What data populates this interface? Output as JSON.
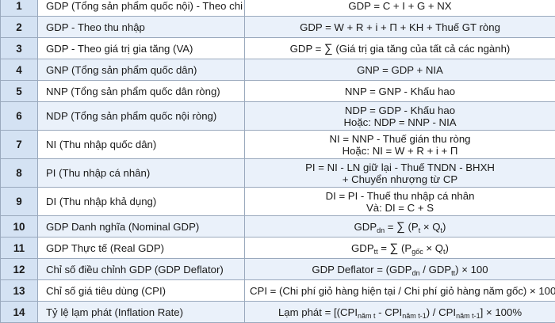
{
  "rows": [
    {
      "num": "1",
      "name": "GDP (Tổng sản phẩm quốc nội) - Theo chi tiêu",
      "lines": [
        [
          {
            "t": "GDP = C + I + G + NX"
          }
        ]
      ]
    },
    {
      "num": "2",
      "name": "GDP - Theo thu nhập",
      "lines": [
        [
          {
            "t": "GDP = W + R + i + Π + KH + Thuế GT ròng"
          }
        ]
      ]
    },
    {
      "num": "3",
      "name": "GDP - Theo giá trị gia tăng (VA)",
      "lines": [
        [
          {
            "t": "GDP = "
          },
          {
            "t": "∑",
            "c": "sigma"
          },
          {
            "t": " (Giá trị gia tăng của tất cả các ngành)"
          }
        ]
      ]
    },
    {
      "num": "4",
      "name": "GNP (Tổng sản phẩm quốc dân)",
      "lines": [
        [
          {
            "t": "GNP = GDP + NIA"
          }
        ]
      ]
    },
    {
      "num": "5",
      "name": "NNP (Tổng sản phẩm quốc dân ròng)",
      "lines": [
        [
          {
            "t": "NNP = GNP - Khấu hao"
          }
        ]
      ]
    },
    {
      "num": "6",
      "name": "NDP (Tổng sản phẩm quốc nội ròng)",
      "lines": [
        [
          {
            "t": "NDP = GDP - Khấu hao"
          }
        ],
        [
          {
            "t": "Hoặc: NDP = NNP - NIA"
          }
        ]
      ]
    },
    {
      "num": "7",
      "name": "NI (Thu nhập quốc dân)",
      "lines": [
        [
          {
            "t": "NI = NNP - Thuế gián thu ròng"
          }
        ],
        [
          {
            "t": "Hoặc: NI = W + R + i + Π"
          }
        ]
      ]
    },
    {
      "num": "8",
      "name": "PI (Thu nhập cá nhân)",
      "lines": [
        [
          {
            "t": "PI = NI - LN giữ lại - Thuế TNDN - BHXH"
          }
        ],
        [
          {
            "t": "+ Chuyển nhượng từ CP"
          }
        ]
      ]
    },
    {
      "num": "9",
      "name": "DI (Thu nhập khả dụng)",
      "lines": [
        [
          {
            "t": "DI = PI - Thuế thu nhập cá nhân"
          }
        ],
        [
          {
            "t": "Và: DI = C + S"
          }
        ]
      ]
    },
    {
      "num": "10",
      "name": "GDP Danh nghĩa (Nominal GDP)",
      "lines": [
        [
          {
            "t": "GDP"
          },
          {
            "t": "dn",
            "s": 1
          },
          {
            "t": " = "
          },
          {
            "t": "∑",
            "c": "sigma"
          },
          {
            "t": " (P"
          },
          {
            "t": "t",
            "s": 1
          },
          {
            "t": " × Q"
          },
          {
            "t": "t",
            "s": 1
          },
          {
            "t": ")"
          }
        ]
      ]
    },
    {
      "num": "11",
      "name": "GDP Thực tế (Real GDP)",
      "lines": [
        [
          {
            "t": "GDP"
          },
          {
            "t": "tt",
            "s": 1
          },
          {
            "t": " = "
          },
          {
            "t": "∑",
            "c": "sigma"
          },
          {
            "t": " (P"
          },
          {
            "t": "gốc",
            "s": 1
          },
          {
            "t": " × Q"
          },
          {
            "t": "t",
            "s": 1
          },
          {
            "t": ")"
          }
        ]
      ]
    },
    {
      "num": "12",
      "name": "Chỉ số điều chỉnh GDP (GDP Deflator)",
      "lines": [
        [
          {
            "t": "GDP Deflator = (GDP"
          },
          {
            "t": "dn",
            "s": 1
          },
          {
            "t": " / GDP"
          },
          {
            "t": "tt",
            "s": 1
          },
          {
            "t": ") × 100"
          }
        ]
      ]
    },
    {
      "num": "13",
      "name": "Chỉ số giá tiêu dùng (CPI)",
      "lines": [
        [
          {
            "t": "CPI = (Chi phí giỏ hàng hiện tại / Chi phí giỏ hàng năm gốc) × 100"
          }
        ]
      ]
    },
    {
      "num": "14",
      "name": "Tỷ lệ lạm phát (Inflation Rate)",
      "lines": [
        [
          {
            "t": "Lạm phát = [(CPI"
          },
          {
            "t": "năm t",
            "s": 1
          },
          {
            "t": " - CPI"
          },
          {
            "t": "năm t-1",
            "s": 1
          },
          {
            "t": ") / CPI"
          },
          {
            "t": "năm t-1",
            "s": 1
          },
          {
            "t": "] × 100%"
          }
        ]
      ]
    }
  ]
}
